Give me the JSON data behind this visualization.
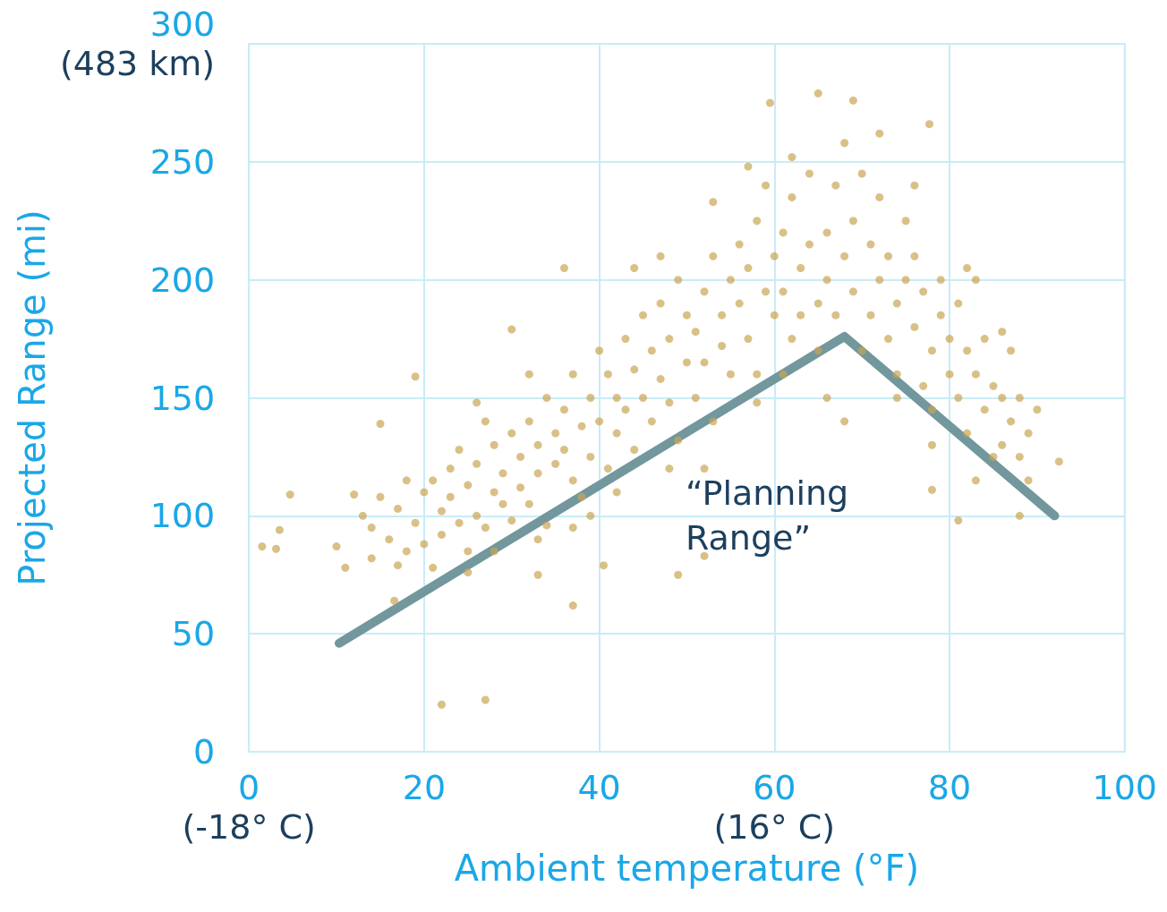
{
  "chart_data": {
    "type": "scatter",
    "xlabel": "Ambient temperature (°F)",
    "ylabel": "Projected Range (mi)",
    "xlim": [
      0,
      100
    ],
    "ylim": [
      0,
      300
    ],
    "xticks": [
      {
        "value": 0,
        "label": "0\n(-18° C)"
      },
      20,
      40,
      {
        "value": 60,
        "label": "60\n(16° C)"
      },
      80,
      100
    ],
    "yticks": [
      0,
      50,
      100,
      150,
      200,
      250,
      {
        "value": 300,
        "label": "300\n(483 km)"
      }
    ],
    "grid": true,
    "marker": "circle",
    "annotations": [
      "“Planning\nRange”"
    ],
    "series": [
      {
        "color": "#c9a552",
        "x": [
          1.5,
          3.1,
          3.5,
          4.7,
          22,
          27,
          37,
          19,
          15,
          36,
          30,
          59.5,
          65,
          69,
          77.7,
          92.5,
          88,
          81,
          78,
          52,
          49,
          40.5,
          33,
          25,
          11,
          16.6,
          10,
          12,
          13,
          14,
          15,
          16,
          17,
          18,
          18,
          19,
          20,
          20,
          14,
          17,
          21,
          22,
          22,
          23,
          23,
          24,
          24,
          25,
          25,
          21,
          26,
          26,
          27,
          27,
          28,
          28,
          29,
          29,
          30,
          30,
          28,
          26,
          31,
          31,
          32,
          32,
          33,
          33,
          34,
          34,
          35,
          35,
          33,
          32,
          36,
          36,
          37,
          37,
          38,
          38,
          39,
          39,
          40,
          40,
          37,
          39,
          41,
          41,
          42,
          42,
          43,
          43,
          44,
          44,
          45,
          45,
          42,
          44,
          46,
          46,
          47,
          47,
          48,
          48,
          49,
          49,
          50,
          50,
          47,
          48,
          51,
          51,
          52,
          52,
          53,
          53,
          54,
          54,
          55,
          55,
          53,
          52,
          56,
          56,
          57,
          57,
          58,
          58,
          59,
          59,
          60,
          60,
          57,
          58,
          61,
          61,
          62,
          62,
          63,
          63,
          64,
          64,
          65,
          65,
          62,
          61,
          66,
          66,
          67,
          67,
          68,
          68,
          69,
          69,
          70,
          70,
          66,
          68,
          71,
          71,
          72,
          72,
          73,
          73,
          74,
          74,
          75,
          75,
          72,
          74,
          76,
          76,
          77,
          77,
          78,
          78,
          79,
          79,
          80,
          80,
          76,
          78,
          81,
          81,
          82,
          82,
          83,
          83,
          84,
          84,
          85,
          85,
          82,
          83,
          86,
          86,
          87,
          87,
          88,
          88,
          89,
          90,
          89,
          86
        ],
        "values": [
          87,
          86,
          94,
          109,
          20,
          22,
          62,
          159,
          139,
          205,
          179,
          275,
          279,
          276,
          266,
          123,
          100,
          98,
          111,
          83,
          75,
          79,
          75,
          76,
          78,
          64,
          87,
          109,
          100,
          95,
          108,
          90,
          103,
          85,
          115,
          97,
          110,
          88,
          82,
          79,
          115,
          102,
          92,
          120,
          108,
          97,
          128,
          113,
          85,
          78,
          122,
          100,
          95,
          140,
          110,
          130,
          118,
          105,
          135,
          98,
          85,
          148,
          125,
          112,
          140,
          105,
          130,
          118,
          150,
          96,
          135,
          122,
          90,
          160,
          145,
          128,
          115,
          160,
          138,
          108,
          150,
          125,
          170,
          140,
          95,
          100,
          160,
          120,
          150,
          135,
          175,
          145,
          162,
          128,
          185,
          150,
          110,
          205,
          170,
          140,
          158,
          190,
          175,
          148,
          200,
          132,
          165,
          185,
          210,
          120,
          178,
          150,
          195,
          165,
          210,
          140,
          185,
          172,
          200,
          160,
          233,
          120,
          190,
          215,
          175,
          205,
          225,
          160,
          195,
          240,
          185,
          210,
          248,
          148,
          220,
          195,
          175,
          235,
          205,
          185,
          215,
          245,
          190,
          170,
          252,
          160,
          220,
          200,
          240,
          185,
          210,
          258,
          195,
          225,
          245,
          170,
          150,
          140,
          215,
          185,
          200,
          235,
          175,
          210,
          190,
          160,
          225,
          200,
          262,
          150,
          180,
          210,
          155,
          195,
          170,
          145,
          185,
          200,
          160,
          175,
          240,
          130,
          190,
          150,
          170,
          135,
          160,
          200,
          145,
          175,
          155,
          125,
          205,
          115,
          150,
          130,
          140,
          170,
          125,
          150,
          135,
          145,
          115,
          178
        ]
      },
      {
        "type": "line",
        "color": "#72979d",
        "line_style": "solid",
        "marker": "none",
        "x": [
          10.3,
          68,
          92
        ],
        "values": [
          46,
          176,
          100
        ]
      }
    ]
  }
}
